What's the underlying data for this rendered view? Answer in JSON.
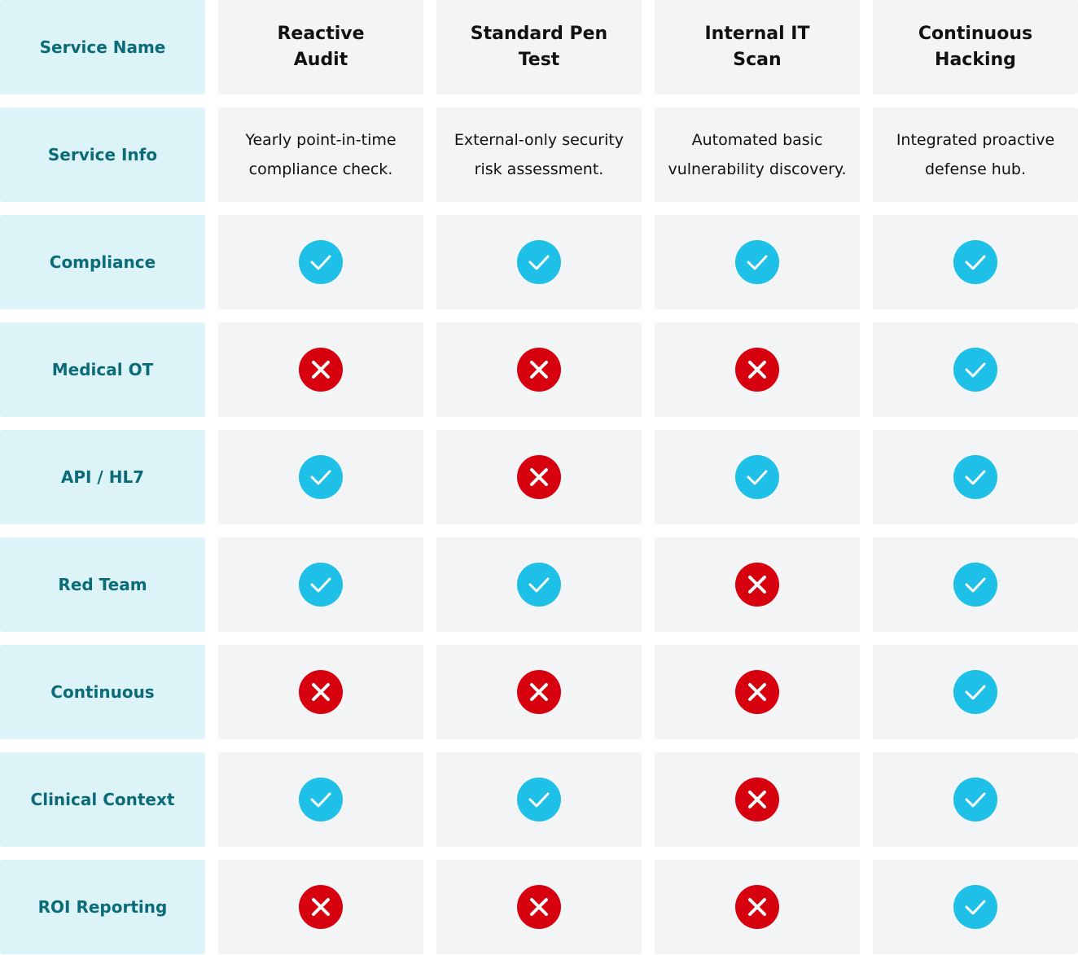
{
  "table": {
    "header": {
      "label": "Service Name",
      "columns": [
        "Reactive Audit",
        "Standard Pen Test",
        "Internal IT Scan",
        "Continuous Hacking"
      ]
    },
    "info": {
      "label": "Service Info",
      "values": [
        "Yearly point-in-time compliance check.",
        "External-only security risk assessment.",
        "Automated basic vulnerability discovery.",
        "Integrated proactive defense hub."
      ]
    },
    "rows": [
      {
        "label": "Compliance",
        "values": [
          true,
          true,
          true,
          true
        ]
      },
      {
        "label": "Medical OT",
        "values": [
          false,
          false,
          false,
          true
        ]
      },
      {
        "label": "API / HL7",
        "values": [
          true,
          false,
          true,
          true
        ]
      },
      {
        "label": "Red Team",
        "values": [
          true,
          true,
          false,
          true
        ]
      },
      {
        "label": "Continuous",
        "values": [
          false,
          false,
          false,
          true
        ]
      },
      {
        "label": "Clinical Context",
        "values": [
          true,
          true,
          false,
          true
        ]
      },
      {
        "label": "ROI Reporting",
        "values": [
          false,
          false,
          false,
          true
        ]
      }
    ]
  }
}
